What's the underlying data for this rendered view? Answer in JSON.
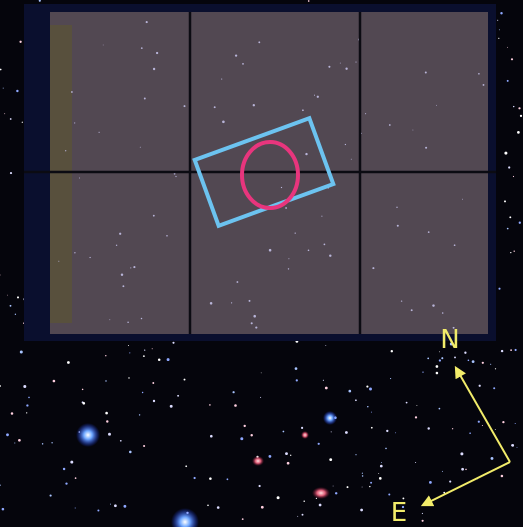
{
  "compass": {
    "north": "N",
    "east": "E"
  }
}
